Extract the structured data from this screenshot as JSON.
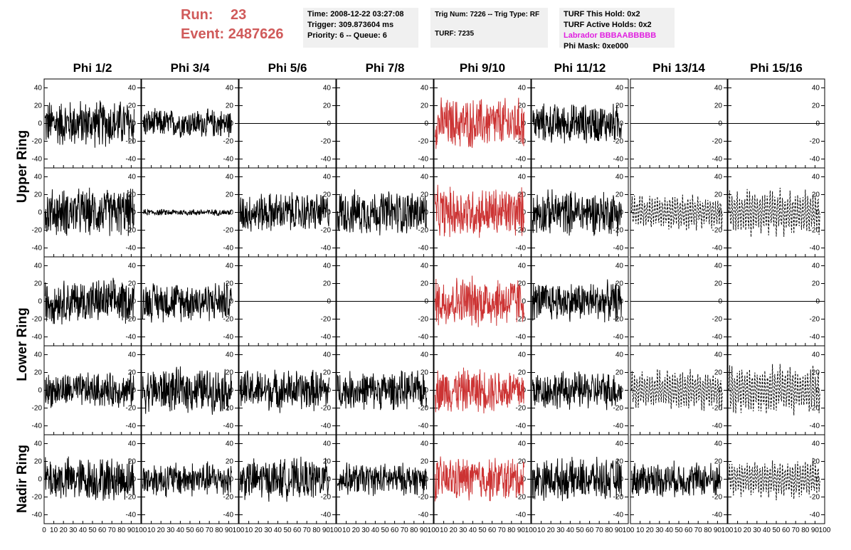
{
  "header": {
    "run_label": "Run:",
    "run_value": "23",
    "event_label": "Event:",
    "event_value": "2487626",
    "time_box": {
      "time": "Time: 2008-12-22 03:27:08",
      "trigger": "Trigger: 309.873604 ms",
      "priority": "Priority: 6 -- Queue: 6"
    },
    "trig_box": {
      "trig": "Trig Num: 7226 -- Trig Type: RF",
      "turf": "TURF: 7235"
    },
    "turf_box": {
      "this_hold": "TURF This Hold: 0x2",
      "active_holds": "TURF Active Holds: 0x2",
      "labrador": "Labrador BBBAABBBBB",
      "phi_mask": "Phi Mask: 0xe000"
    }
  },
  "columns": [
    "Phi 1/2",
    "Phi 3/4",
    "Phi 5/6",
    "Phi 7/8",
    "Phi 9/10",
    "Phi 11/12",
    "Phi 13/14",
    "Phi 15/16"
  ],
  "rings": [
    "Upper Ring",
    "Lower Ring",
    "Nadir Ring"
  ],
  "colors": {
    "highlight": "#cc3333",
    "trace": "#000000",
    "run_text": "#d05a5a",
    "labrador": "#e020e0"
  },
  "chart_data": {
    "type": "line",
    "ylim": [
      -50,
      50
    ],
    "xlim": [
      0,
      100
    ],
    "y_ticks": [
      -40,
      -20,
      0,
      20,
      40
    ],
    "x_ticks": [
      0,
      10,
      20,
      30,
      40,
      50,
      60,
      70,
      80,
      90,
      100
    ],
    "highlight_column": 4,
    "panel_rows": [
      {
        "ring": "Upper Ring",
        "amplitudes": [
          30,
          18,
          0,
          0,
          32,
          25,
          0,
          0
        ],
        "styles": [
          "solid",
          "solid",
          "flat",
          "flat",
          "solid",
          "solid",
          "flat",
          "flat"
        ]
      },
      {
        "ring": "Upper Ring",
        "amplitudes": [
          30,
          4,
          25,
          28,
          32,
          28,
          22,
          28
        ],
        "styles": [
          "solid",
          "solid",
          "solid",
          "solid",
          "solid",
          "solid",
          "dashed",
          "dashed"
        ]
      },
      {
        "ring": "Lower Ring",
        "amplitudes": [
          28,
          25,
          0,
          0,
          32,
          25,
          0,
          0
        ],
        "styles": [
          "solid",
          "solid",
          "flat",
          "flat",
          "solid",
          "solid",
          "flat",
          "flat"
        ]
      },
      {
        "ring": "Lower Ring",
        "amplitudes": [
          22,
          28,
          26,
          24,
          28,
          24,
          25,
          30
        ],
        "styles": [
          "solid",
          "solid",
          "solid",
          "solid",
          "solid",
          "solid",
          "dashed",
          "dashed"
        ]
      },
      {
        "ring": "Nadir Ring",
        "amplitudes": [
          28,
          22,
          26,
          20,
          28,
          26,
          22,
          24
        ],
        "styles": [
          "solid",
          "solid",
          "solid",
          "solid",
          "solid",
          "solid",
          "solid",
          "dashed"
        ]
      }
    ]
  }
}
